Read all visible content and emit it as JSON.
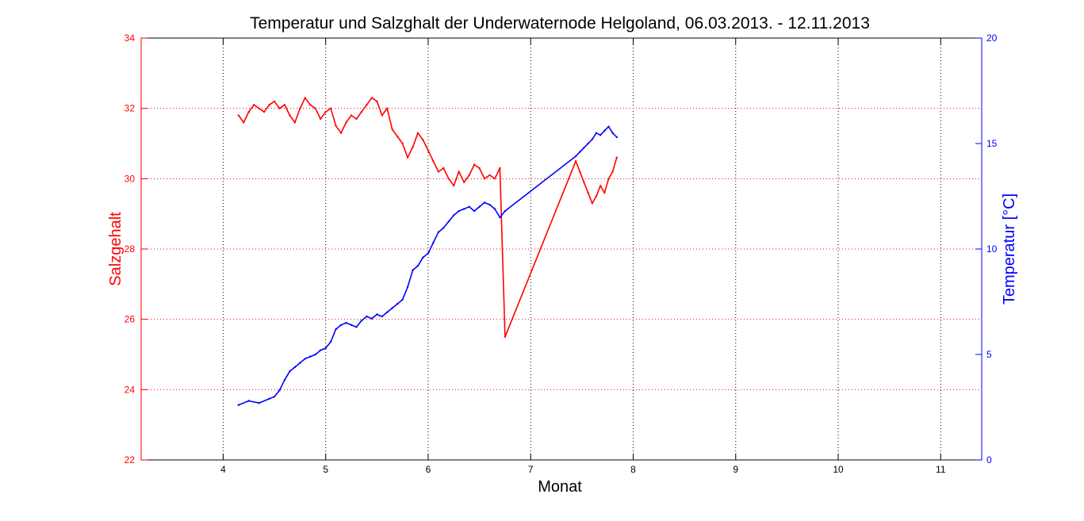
{
  "colors": {
    "salinity": "#ff0000",
    "temperature": "#0000ff",
    "grid": "#000000",
    "axis": "#000000",
    "background": "#ffffff"
  },
  "chart_data": {
    "type": "line",
    "title": "Temperatur und Salzghalt der Underwaternode Helgoland, 06.03.2013. - 12.11.2013",
    "xlabel": "Monat",
    "ylabel_left": "Salzgehalt",
    "ylabel_right": "Temperatur [°C]",
    "xlim": [
      3.2,
      11.4
    ],
    "ylim_left": [
      22,
      34
    ],
    "ylim_right": [
      0,
      20
    ],
    "x_ticks": [
      4,
      5,
      6,
      7,
      8,
      9,
      10,
      11
    ],
    "y_left_ticks": [
      22,
      24,
      26,
      28,
      30,
      32,
      34
    ],
    "y_right_ticks": [
      0,
      5,
      10,
      15,
      20
    ],
    "grid": true,
    "series": [
      {
        "name": "",
        "axis": "left",
        "color": "#ff0000",
        "x": [
          4.15,
          4.2,
          4.25,
          4.3,
          4.35,
          4.4,
          4.45,
          4.5,
          4.55,
          4.6,
          4.65,
          4.7,
          4.75,
          4.8,
          4.85,
          4.9,
          4.95,
          5.0,
          5.05,
          5.1,
          5.15,
          5.2,
          5.25,
          5.3,
          5.35,
          5.4,
          5.45,
          5.5,
          5.55,
          5.6,
          5.65,
          5.7,
          5.75,
          5.8,
          5.85,
          5.9,
          5.95,
          6.0,
          6.05,
          6.1,
          6.15,
          6.2,
          6.25,
          6.3,
          6.35,
          6.4,
          6.45,
          6.5,
          6.55,
          6.6,
          6.65,
          6.7,
          6.75,
          7.44,
          7.48,
          7.52,
          7.56,
          7.6,
          7.64,
          7.68,
          7.72,
          7.76,
          7.8,
          7.84
        ],
        "y": [
          31.8,
          31.6,
          31.9,
          32.1,
          32.0,
          31.9,
          32.1,
          32.2,
          32.0,
          32.1,
          31.8,
          31.6,
          32.0,
          32.3,
          32.1,
          32.0,
          31.7,
          31.9,
          32.0,
          31.5,
          31.3,
          31.6,
          31.8,
          31.7,
          31.9,
          32.1,
          32.3,
          32.2,
          31.8,
          32.0,
          31.4,
          31.2,
          31.0,
          30.6,
          30.9,
          31.3,
          31.1,
          30.8,
          30.5,
          30.2,
          30.3,
          30.0,
          29.8,
          30.2,
          29.9,
          30.1,
          30.4,
          30.3,
          30.0,
          30.1,
          30.0,
          30.3,
          25.5,
          30.5,
          30.2,
          29.9,
          29.6,
          29.3,
          29.5,
          29.8,
          29.6,
          30.0,
          30.2,
          30.6
        ]
      },
      {
        "name": "",
        "axis": "right",
        "color": "#0000ff",
        "x": [
          4.15,
          4.25,
          4.35,
          4.45,
          4.5,
          4.55,
          4.6,
          4.65,
          4.7,
          4.75,
          4.8,
          4.85,
          4.9,
          4.95,
          5.0,
          5.05,
          5.1,
          5.15,
          5.2,
          5.25,
          5.3,
          5.35,
          5.4,
          5.45,
          5.5,
          5.55,
          5.6,
          5.65,
          5.7,
          5.75,
          5.8,
          5.85,
          5.9,
          5.95,
          6.0,
          6.05,
          6.1,
          6.15,
          6.2,
          6.25,
          6.3,
          6.35,
          6.4,
          6.45,
          6.5,
          6.55,
          6.6,
          6.65,
          6.7,
          6.75,
          7.44,
          7.48,
          7.52,
          7.56,
          7.6,
          7.64,
          7.68,
          7.72,
          7.76,
          7.8,
          7.84
        ],
        "y": [
          2.6,
          2.8,
          2.7,
          2.9,
          3.0,
          3.3,
          3.8,
          4.2,
          4.4,
          4.6,
          4.8,
          4.9,
          5.0,
          5.2,
          5.3,
          5.6,
          6.2,
          6.4,
          6.5,
          6.4,
          6.3,
          6.6,
          6.8,
          6.7,
          6.9,
          6.8,
          7.0,
          7.2,
          7.4,
          7.6,
          8.2,
          9.0,
          9.2,
          9.6,
          9.8,
          10.3,
          10.8,
          11.0,
          11.3,
          11.6,
          11.8,
          11.9,
          12.0,
          11.8,
          12.0,
          12.2,
          12.1,
          11.9,
          11.5,
          11.8,
          14.4,
          14.6,
          14.8,
          15.0,
          15.2,
          15.5,
          15.4,
          15.6,
          15.8,
          15.5,
          15.3
        ]
      }
    ]
  }
}
